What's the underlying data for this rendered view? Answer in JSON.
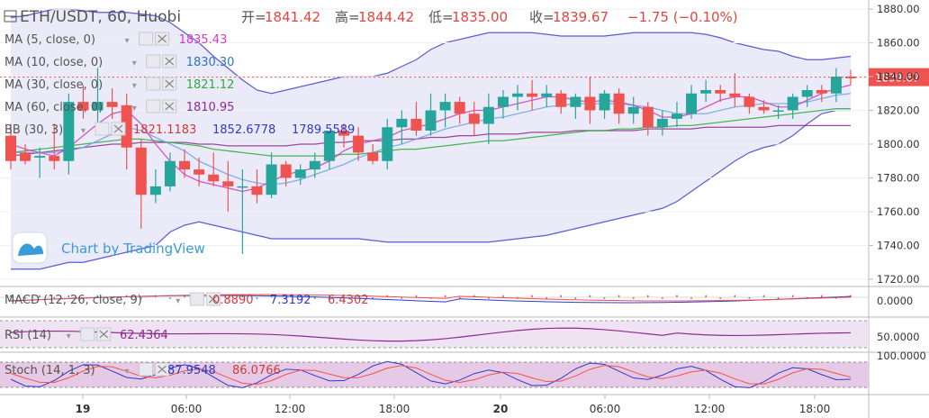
{
  "header": {
    "symbol": "ETH/USDT, 60, Huobi",
    "dropdown_icon": "chevron-down-icon",
    "open_label": "开=",
    "open": "1841.42",
    "high_label": "高=",
    "high": "1844.42",
    "low_label": "低=",
    "low": "1835.00",
    "close_label": "收=",
    "close": "1839.67",
    "change": "−1.75 (−0.10%)"
  },
  "watermark": "Chart by TradingView",
  "indicators": [
    {
      "label": "MA (5, close, 0)",
      "values": [
        "1835.43"
      ],
      "colors": [
        "#d23bbd"
      ]
    },
    {
      "label": "MA (10, close, 0)",
      "values": [
        "1830.30"
      ],
      "colors": [
        "#2f73c9"
      ]
    },
    {
      "label": "MA (30, close, 0)",
      "values": [
        "1821.12"
      ],
      "colors": [
        "#2eaa3c"
      ]
    },
    {
      "label": "MA (60, close, 0)",
      "values": [
        "1810.95"
      ],
      "colors": [
        "#8e2b8f"
      ]
    },
    {
      "label": "BB (30, 3)",
      "values": [
        "1821.1183",
        "1852.6778",
        "1789.5589"
      ],
      "colors": [
        "#d23b3b",
        "#2f3bc9",
        "#2f3bc9"
      ]
    }
  ],
  "panes": {
    "macd": {
      "label": "MACD (12, 26, close, 9)",
      "values": [
        "0.8890",
        "7.3192",
        "6.4302"
      ],
      "colors": [
        "#d23b3b",
        "#2f3bc9",
        "#d23b3b"
      ],
      "axis": "0.0000"
    },
    "rsi": {
      "label": "RSI (14)",
      "values": [
        "62.4364"
      ],
      "colors": [
        "#8e2b8f"
      ],
      "axis": "50.0000"
    },
    "stoch": {
      "label": "Stoch (14, 1, 3)",
      "values": [
        "87.9548",
        "86.0766"
      ],
      "colors": [
        "#2f3bc9",
        "#d23b3b"
      ],
      "axis": "100.0000"
    }
  },
  "chart_data": {
    "type": "candlestick",
    "symbol": "ETH/USDT",
    "interval": "60",
    "exchange": "Huobi",
    "y_ticks": [
      "1880.00",
      "1860.00",
      "1840.00",
      "1820.00",
      "1800.00",
      "1780.00",
      "1760.00",
      "1740.00",
      "1720.00"
    ],
    "ylim": [
      1715,
      1885
    ],
    "last_price": "1839.67",
    "x_ticks": [
      "19",
      "06:00",
      "12:00",
      "18:00",
      "20",
      "06:00",
      "12:00",
      "18:00"
    ],
    "colors": {
      "up": "#26a69a",
      "down": "#ef5350",
      "band_fill": "#e3e3f5",
      "band_line": "#5b5bd6"
    },
    "candles": [
      [
        1805,
        1812,
        1785,
        1790
      ],
      [
        1795,
        1800,
        1788,
        1790
      ],
      [
        1792,
        1798,
        1780,
        1793
      ],
      [
        1793,
        1812,
        1785,
        1790
      ],
      [
        1790,
        1830,
        1782,
        1825
      ],
      [
        1825,
        1835,
        1815,
        1820
      ],
      [
        1820,
        1845,
        1812,
        1825
      ],
      [
        1825,
        1833,
        1815,
        1822
      ],
      [
        1823,
        1830,
        1785,
        1798
      ],
      [
        1798,
        1803,
        1750,
        1770
      ],
      [
        1770,
        1785,
        1765,
        1775
      ],
      [
        1775,
        1795,
        1772,
        1790
      ],
      [
        1790,
        1797,
        1780,
        1785
      ],
      [
        1785,
        1792,
        1775,
        1782
      ],
      [
        1782,
        1795,
        1775,
        1778
      ],
      [
        1778,
        1790,
        1760,
        1775
      ],
      [
        1775,
        1785,
        1735,
        1775
      ],
      [
        1775,
        1785,
        1765,
        1770
      ],
      [
        1770,
        1795,
        1768,
        1788
      ],
      [
        1788,
        1790,
        1775,
        1780
      ],
      [
        1780,
        1788,
        1776,
        1785
      ],
      [
        1785,
        1795,
        1780,
        1790
      ],
      [
        1790,
        1808,
        1785,
        1808
      ],
      [
        1808,
        1812,
        1798,
        1805
      ],
      [
        1805,
        1810,
        1790,
        1795
      ],
      [
        1795,
        1800,
        1788,
        1790
      ],
      [
        1790,
        1815,
        1785,
        1810
      ],
      [
        1810,
        1820,
        1800,
        1815
      ],
      [
        1815,
        1825,
        1805,
        1808
      ],
      [
        1808,
        1830,
        1805,
        1820
      ],
      [
        1820,
        1830,
        1810,
        1825
      ],
      [
        1825,
        1828,
        1812,
        1818
      ],
      [
        1818,
        1825,
        1805,
        1812
      ],
      [
        1812,
        1830,
        1800,
        1822
      ],
      [
        1822,
        1832,
        1815,
        1828
      ],
      [
        1828,
        1835,
        1820,
        1830
      ],
      [
        1830,
        1838,
        1820,
        1828
      ],
      [
        1828,
        1835,
        1822,
        1830
      ],
      [
        1830,
        1832,
        1818,
        1822
      ],
      [
        1822,
        1830,
        1815,
        1828
      ],
      [
        1828,
        1840,
        1812,
        1820
      ],
      [
        1820,
        1832,
        1815,
        1830
      ],
      [
        1830,
        1833,
        1812,
        1818
      ],
      [
        1818,
        1828,
        1812,
        1822
      ],
      [
        1822,
        1825,
        1805,
        1810
      ],
      [
        1810,
        1820,
        1805,
        1815
      ],
      [
        1815,
        1825,
        1810,
        1818
      ],
      [
        1818,
        1835,
        1815,
        1830
      ],
      [
        1830,
        1838,
        1825,
        1832
      ],
      [
        1832,
        1835,
        1825,
        1830
      ],
      [
        1830,
        1842,
        1822,
        1828
      ],
      [
        1828,
        1830,
        1818,
        1822
      ],
      [
        1822,
        1826,
        1818,
        1820
      ],
      [
        1820,
        1823,
        1815,
        1820
      ],
      [
        1820,
        1830,
        1815,
        1828
      ],
      [
        1828,
        1835,
        1822,
        1832
      ],
      [
        1832,
        1835,
        1825,
        1830
      ],
      [
        1830,
        1845,
        1825,
        1840
      ],
      [
        1840,
        1844,
        1835,
        1839
      ]
    ],
    "bb_upper": [
      1875,
      1876,
      1878,
      1880,
      1880,
      1879,
      1878,
      1878,
      1878,
      1877,
      1876,
      1872,
      1866,
      1860,
      1852,
      1845,
      1838,
      1832,
      1830,
      1832,
      1834,
      1836,
      1838,
      1840,
      1840,
      1840,
      1842,
      1846,
      1850,
      1856,
      1860,
      1862,
      1864,
      1866,
      1866,
      1866,
      1866,
      1865,
      1864,
      1864,
      1864,
      1864,
      1865,
      1866,
      1866,
      1866,
      1866,
      1866,
      1865,
      1863,
      1860,
      1858,
      1856,
      1855,
      1852,
      1850,
      1850,
      1851,
      1852
    ],
    "bb_lower": [
      1726,
      1726,
      1726,
      1728,
      1730,
      1730,
      1732,
      1734,
      1736,
      1738,
      1740,
      1748,
      1752,
      1754,
      1752,
      1750,
      1748,
      1746,
      1744,
      1744,
      1744,
      1744,
      1744,
      1744,
      1744,
      1743,
      1742,
      1742,
      1742,
      1742,
      1742,
      1742,
      1742,
      1742,
      1743,
      1744,
      1745,
      1746,
      1748,
      1750,
      1752,
      1754,
      1756,
      1758,
      1760,
      1762,
      1766,
      1772,
      1778,
      1784,
      1790,
      1795,
      1798,
      1800,
      1805,
      1812,
      1818,
      1820,
      1820
    ],
    "ma5": [
      1800,
      1797,
      1795,
      1793,
      1798,
      1805,
      1812,
      1818,
      1820,
      1812,
      1800,
      1790,
      1782,
      1778,
      1776,
      1774,
      1772,
      1774,
      1778,
      1782,
      1784,
      1786,
      1790,
      1796,
      1800,
      1802,
      1804,
      1808,
      1810,
      1812,
      1815,
      1818,
      1820,
      1820,
      1822,
      1824,
      1826,
      1828,
      1828,
      1826,
      1825,
      1826,
      1825,
      1823,
      1820,
      1816,
      1816,
      1818,
      1822,
      1826,
      1828,
      1828,
      1825,
      1822,
      1822,
      1826,
      1830,
      1833,
      1835
    ],
    "ma10": [
      1795,
      1795,
      1795,
      1795,
      1796,
      1798,
      1802,
      1806,
      1810,
      1808,
      1804,
      1800,
      1796,
      1790,
      1786,
      1782,
      1779,
      1777,
      1776,
      1777,
      1779,
      1782,
      1785,
      1788,
      1792,
      1795,
      1798,
      1800,
      1803,
      1806,
      1809,
      1811,
      1813,
      1815,
      1816,
      1818,
      1820,
      1822,
      1823,
      1824,
      1824,
      1824,
      1824,
      1823,
      1822,
      1820,
      1818,
      1818,
      1818,
      1820,
      1822,
      1823,
      1824,
      1824,
      1824,
      1825,
      1827,
      1829,
      1830
    ],
    "ma30": [
      1795,
      1796,
      1797,
      1798,
      1799,
      1800,
      1801,
      1802,
      1803,
      1803,
      1802,
      1801,
      1800,
      1799,
      1797,
      1796,
      1795,
      1794,
      1793,
      1793,
      1793,
      1793,
      1793,
      1794,
      1794,
      1795,
      1796,
      1797,
      1797,
      1798,
      1799,
      1800,
      1801,
      1802,
      1802,
      1803,
      1804,
      1805,
      1806,
      1807,
      1808,
      1808,
      1809,
      1809,
      1810,
      1810,
      1811,
      1811,
      1812,
      1813,
      1814,
      1815,
      1816,
      1817,
      1818,
      1819,
      1820,
      1821,
      1821
    ],
    "ma60": [
      1793,
      1794,
      1795,
      1796,
      1797,
      1798,
      1799,
      1800,
      1800,
      1801,
      1801,
      1801,
      1801,
      1800,
      1800,
      1799,
      1799,
      1799,
      1799,
      1799,
      1800,
      1800,
      1801,
      1801,
      1802,
      1802,
      1802,
      1803,
      1803,
      1804,
      1804,
      1805,
      1805,
      1806,
      1806,
      1806,
      1807,
      1807,
      1807,
      1808,
      1808,
      1808,
      1808,
      1808,
      1809,
      1809,
      1809,
      1809,
      1810,
      1810,
      1810,
      1810,
      1810,
      1811,
      1811,
      1811,
      1811,
      1811,
      1811
    ]
  }
}
